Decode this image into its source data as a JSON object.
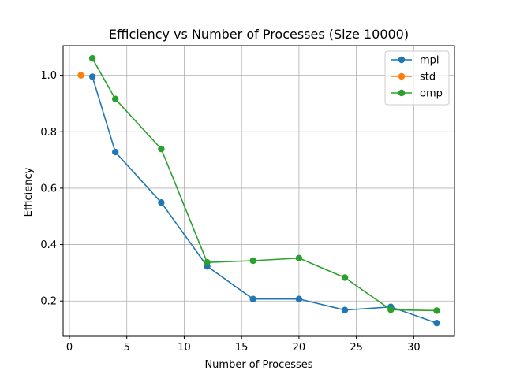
{
  "chart_data": {
    "type": "line",
    "title": "Efficiency vs Number of Processes (Size 10000)",
    "xlabel": "Number of Processes",
    "ylabel": "Efficiency",
    "xlim": [
      -0.55,
      33.55
    ],
    "ylim": [
      0.075,
      1.105
    ],
    "xticks": [
      0,
      5,
      10,
      15,
      20,
      25,
      30
    ],
    "yticks": [
      0.2,
      0.4,
      0.6,
      0.8,
      1.0
    ],
    "ytick_labels": [
      "0.2",
      "0.4",
      "0.6",
      "0.8",
      "1.0"
    ],
    "grid": true,
    "legend_position": "top-right",
    "series": [
      {
        "name": "mpi",
        "color": "#1f77b4",
        "x": [
          2,
          4,
          8,
          12,
          16,
          20,
          24,
          28,
          32
        ],
        "y": [
          0.995,
          0.728,
          0.549,
          0.323,
          0.207,
          0.207,
          0.168,
          0.179,
          0.122
        ]
      },
      {
        "name": "std",
        "color": "#ff7f0e",
        "x": [
          1
        ],
        "y": [
          1.0
        ]
      },
      {
        "name": "omp",
        "color": "#2ca02c",
        "x": [
          2,
          4,
          8,
          12,
          16,
          20,
          24,
          28,
          32
        ],
        "y": [
          1.06,
          0.916,
          0.739,
          0.337,
          0.343,
          0.352,
          0.283,
          0.169,
          0.166
        ]
      }
    ]
  }
}
